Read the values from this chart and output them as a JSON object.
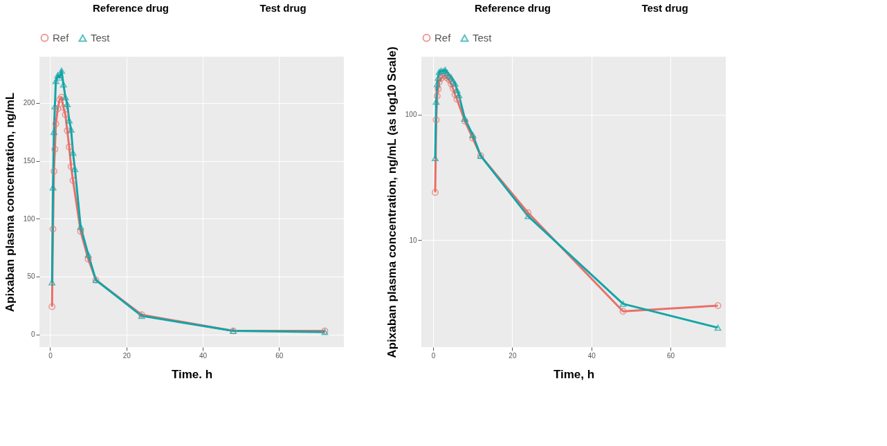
{
  "chart_data": [
    {
      "type": "line",
      "annotations": [
        "Reference drug",
        "Test drug"
      ],
      "xlabel": "Time. h",
      "ylabel": "Apixaban plasma concentration, ng/mL",
      "xlim": [
        -2.8,
        77
      ],
      "ylim": [
        -11,
        240
      ],
      "xticks": [
        0,
        20,
        40,
        60
      ],
      "yticks": [
        0,
        50,
        100,
        150,
        200
      ],
      "grid": true,
      "legend": "top",
      "series": [
        {
          "name": "Ref",
          "color": "#e8706a",
          "marker": "circle",
          "x": [
            0.5,
            0.75,
            1,
            1.25,
            1.5,
            2,
            2.5,
            3,
            3.5,
            4,
            4.5,
            5,
            5.5,
            6,
            8,
            10,
            12,
            24,
            48,
            72
          ],
          "values": [
            24,
            91,
            141,
            160,
            182,
            195,
            203,
            205,
            196,
            190,
            176,
            162,
            145,
            133,
            89,
            65,
            47,
            17,
            3,
            3
          ]
        },
        {
          "name": "Test",
          "color": "#12a5a8",
          "marker": "triangle",
          "x": [
            0.5,
            0.75,
            1,
            1.25,
            1.5,
            2,
            2.5,
            3,
            3.5,
            4,
            4.5,
            5,
            5.5,
            6,
            6.5,
            8,
            10,
            12,
            24,
            48,
            72
          ],
          "values": [
            45,
            127,
            175,
            197,
            219,
            224,
            222,
            228,
            216,
            205,
            199,
            185,
            177,
            157,
            143,
            93,
            69,
            47,
            16,
            3,
            2
          ]
        }
      ]
    },
    {
      "type": "line",
      "annotations": [
        "Reference drug",
        "Test drug"
      ],
      "xlabel": "Time, h",
      "ylabel": "Apixaban plasma concentration, ng/mL (as log10 Scale)",
      "xlim": [
        -3,
        74
      ],
      "ylim": [
        1.4,
        290
      ],
      "xticks": [
        0,
        20,
        40,
        60
      ],
      "yticks": [
        10,
        100
      ],
      "log": "y",
      "grid": true,
      "legend": "top",
      "series": [
        {
          "name": "Ref",
          "color": "#e8706a",
          "marker": "circle",
          "x": [
            0.5,
            0.75,
            1,
            1.25,
            1.5,
            2,
            2.5,
            3,
            3.5,
            4,
            4.5,
            5,
            5.5,
            6,
            8,
            10,
            12,
            24,
            48,
            72
          ],
          "values": [
            24,
            91,
            141,
            160,
            182,
            195,
            203,
            205,
            196,
            190,
            176,
            162,
            145,
            133,
            89,
            65,
            47,
            16.5,
            2.7,
            3.0
          ]
        },
        {
          "name": "Test",
          "color": "#12a5a8",
          "marker": "triangle",
          "x": [
            0.5,
            0.75,
            1,
            1.25,
            1.5,
            2,
            2.5,
            3,
            3.5,
            4,
            4.5,
            5,
            5.5,
            6,
            6.5,
            8,
            10,
            12,
            24,
            48,
            72
          ],
          "values": [
            45,
            127,
            175,
            197,
            219,
            224,
            222,
            228,
            216,
            205,
            199,
            185,
            177,
            157,
            143,
            93,
            69,
            47,
            15.5,
            3.1,
            2.0
          ]
        }
      ]
    }
  ]
}
